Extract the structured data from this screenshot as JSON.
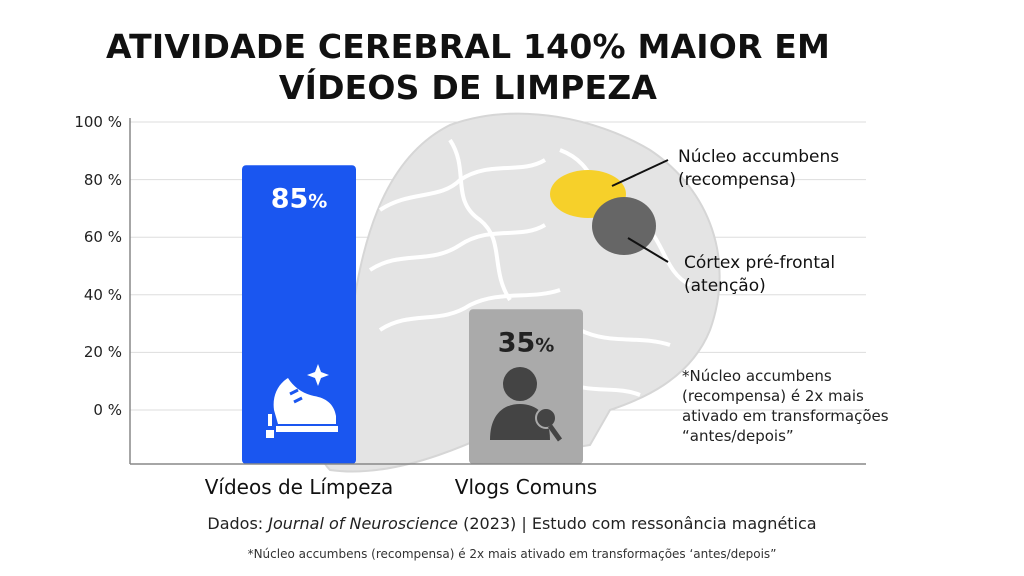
{
  "colors": {
    "bar_primary": "#1a56f0",
    "bar_secondary": "#aaaaaa",
    "nucleus": "#f6d02a",
    "cortex": "#666666",
    "brain": "#e4e4e4"
  },
  "chart_data": {
    "type": "bar",
    "title_lines": [
      "ATIVIDADE CEREBRAL 140% MAIOR EM",
      "VÍDEOS DE LIMPEZA"
    ],
    "categories": [
      "Vídeos de Límpeza",
      "Vlogs Comuns"
    ],
    "values": [
      85,
      35
    ],
    "value_labels": [
      "85",
      "35"
    ],
    "value_unit": "%",
    "y_ticks": [
      {
        "value": 100,
        "label": "100 %"
      },
      {
        "value": 80,
        "label": "80 %"
      },
      {
        "value": 60,
        "label": "60 %"
      },
      {
        "value": 40,
        "label": "40 %"
      },
      {
        "value": 20,
        "label": "20 %"
      },
      {
        "value": 0,
        "label": "0 %"
      }
    ],
    "ylim": [
      0,
      100
    ],
    "grid": true,
    "bar_icons": [
      "sneaker-icon",
      "person-microphone-icon"
    ],
    "annotations": {
      "nucleus": [
        "Núcleo accumbens",
        "(recompensa)"
      ],
      "cortex": [
        "Córtex pré-frontal",
        "(atenção)"
      ]
    },
    "note_lines": [
      "*Núcleo accumbens",
      "(recompensa) é 2x mais",
      "ativado em transformações",
      "“antes/depois”"
    ]
  },
  "source": {
    "prefix": "Dados: ",
    "journal": "Journal of Neuroscience",
    "suffix": " (2023) | Estudo com ressonância magnética"
  },
  "footnote": "*Núcleo accumbens (recompensa) é 2x mais ativado em transformações ‘antes/depois”"
}
